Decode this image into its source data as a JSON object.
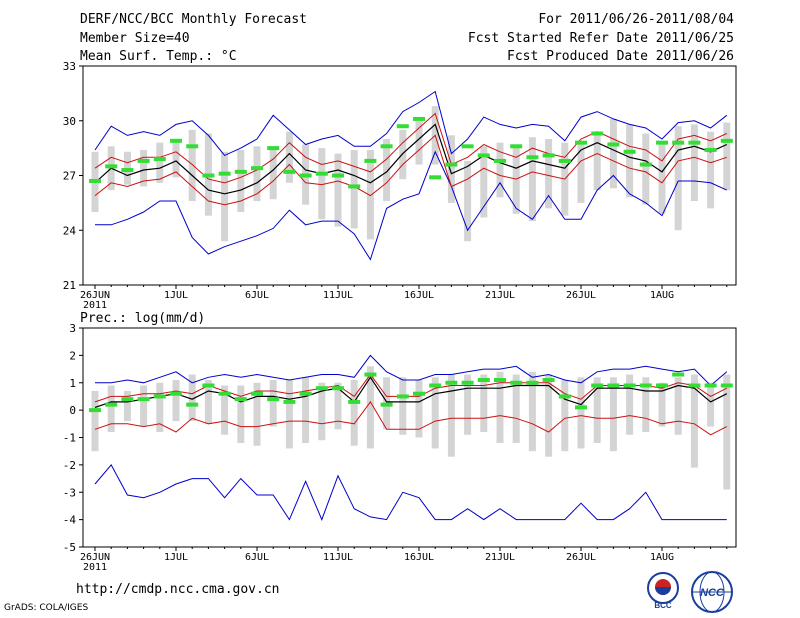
{
  "header": {
    "title": "DERF/NCC/BCC Monthly Forecast",
    "member": "Member Size=40",
    "variable": "Mean Surf. Temp.: °C",
    "period": "For 2011/06/26-2011/08/04",
    "started": "Fcst Started Refer Date 2011/06/25",
    "produced": "Fcst Produced Date 2011/06/26"
  },
  "footer": {
    "url": "http://cmdp.ncc.cma.gov.cn",
    "credit": "GrADS: COLA/IGES",
    "logo_left": "BCC",
    "logo_right": "NCC"
  },
  "colors": {
    "box": "#d4d4d4",
    "median": "#33dd33",
    "mean": "#000000",
    "spread": "#cc1111",
    "extreme": "#0000cc"
  },
  "chart_data": [
    {
      "type": "line",
      "title": "Mean Surf. Temp.: °C",
      "ylim": [
        21,
        33
      ],
      "yticks": [
        21,
        24,
        27,
        30,
        33
      ],
      "xticks": [
        "26JUN\n2011",
        "1JUL",
        "6JUL",
        "11JUL",
        "16JUL",
        "21JUL",
        "26JUL",
        "1AUG"
      ],
      "days": 40,
      "series": [
        {
          "name": "box_low",
          "values": [
            25.0,
            26.2,
            26.5,
            26.4,
            26.6,
            26.9,
            25.6,
            24.8,
            23.4,
            25.0,
            25.6,
            25.7,
            26.6,
            25.4,
            24.6,
            24.2,
            24.1,
            23.5,
            25.6,
            26.8,
            27.6,
            27.6,
            25.5,
            23.4,
            24.7,
            25.8,
            24.9,
            24.5,
            25.2,
            24.8,
            25.5,
            26.2,
            26.3,
            25.8,
            25.4,
            24.9,
            24.0,
            25.6,
            25.2,
            26.2
          ]
        },
        {
          "name": "box_high",
          "values": [
            28.3,
            28.6,
            28.3,
            28.4,
            28.8,
            29.0,
            29.5,
            29.3,
            28.3,
            28.4,
            28.6,
            28.6,
            29.4,
            28.7,
            28.5,
            28.2,
            28.4,
            28.4,
            29.0,
            29.5,
            30.0,
            30.8,
            29.2,
            27.8,
            28.6,
            28.8,
            28.7,
            29.1,
            29.0,
            28.8,
            28.9,
            29.4,
            30.1,
            29.8,
            29.3,
            28.8,
            29.7,
            29.8,
            29.4,
            29.9
          ]
        },
        {
          "name": "median",
          "values": [
            26.7,
            27.5,
            27.3,
            27.8,
            27.9,
            28.9,
            28.6,
            27.0,
            27.1,
            27.2,
            27.4,
            28.5,
            27.2,
            27.0,
            27.1,
            27.0,
            26.4,
            27.8,
            28.6,
            29.7,
            30.1,
            26.9,
            27.6,
            28.6,
            28.1,
            27.8,
            28.6,
            28.0,
            28.1,
            27.8,
            28.8,
            29.3,
            28.7,
            28.3,
            27.6,
            28.8,
            28.8,
            28.8,
            28.4,
            28.9
          ]
        },
        {
          "name": "mean",
          "values": [
            26.6,
            27.4,
            27.0,
            27.3,
            27.4,
            27.8,
            27.0,
            26.2,
            26.0,
            26.2,
            26.6,
            27.3,
            28.2,
            27.3,
            27.1,
            27.3,
            27.0,
            26.6,
            27.2,
            28.2,
            29.0,
            29.8,
            27.1,
            27.5,
            28.1,
            27.7,
            27.4,
            27.8,
            27.6,
            27.4,
            28.4,
            28.8,
            28.4,
            28.0,
            27.8,
            27.2,
            28.4,
            28.6,
            28.3,
            28.7
          ]
        },
        {
          "name": "upper",
          "values": [
            27.4,
            28.0,
            27.7,
            28.0,
            28.0,
            28.3,
            27.6,
            26.8,
            26.6,
            26.9,
            27.3,
            27.9,
            28.8,
            28.0,
            27.6,
            27.8,
            27.5,
            27.2,
            27.9,
            28.8,
            29.6,
            30.4,
            27.6,
            28.0,
            28.7,
            28.3,
            28.0,
            28.5,
            28.2,
            28.0,
            29.0,
            29.4,
            29.0,
            28.6,
            28.4,
            27.8,
            29.0,
            29.2,
            28.9,
            29.3
          ]
        },
        {
          "name": "lower",
          "values": [
            25.9,
            26.6,
            26.4,
            26.7,
            26.8,
            27.2,
            26.4,
            25.6,
            25.4,
            25.6,
            26.0,
            26.7,
            27.6,
            26.6,
            26.5,
            26.7,
            26.4,
            25.9,
            26.6,
            27.6,
            28.4,
            29.2,
            26.4,
            26.8,
            27.4,
            27.0,
            26.8,
            27.2,
            27.0,
            26.8,
            27.8,
            28.2,
            27.8,
            27.4,
            27.2,
            26.6,
            27.8,
            28.0,
            27.7,
            28.0
          ]
        },
        {
          "name": "max",
          "values": [
            28.4,
            29.7,
            29.2,
            29.4,
            29.2,
            29.8,
            30.0,
            29.2,
            28.1,
            28.5,
            29.0,
            30.3,
            29.5,
            28.7,
            29.0,
            29.2,
            28.6,
            28.6,
            29.3,
            30.5,
            31.0,
            31.6,
            28.2,
            29.0,
            30.2,
            29.8,
            29.6,
            29.8,
            29.7,
            28.9,
            30.2,
            30.5,
            30.1,
            29.8,
            29.6,
            29.0,
            29.9,
            30.0,
            29.6,
            30.3
          ]
        },
        {
          "name": "min",
          "values": [
            24.3,
            24.3,
            24.6,
            25.0,
            25.6,
            25.6,
            23.6,
            22.7,
            23.1,
            23.4,
            23.7,
            24.1,
            25.1,
            24.3,
            24.5,
            24.5,
            23.8,
            22.4,
            25.2,
            25.7,
            26.0,
            28.3,
            26.4,
            24.0,
            25.3,
            26.6,
            25.2,
            24.6,
            25.9,
            24.6,
            24.6,
            26.2,
            27.0,
            26.0,
            25.5,
            24.8,
            26.7,
            26.7,
            26.6,
            26.2
          ]
        }
      ]
    },
    {
      "type": "line",
      "title": "Prec.: log(mm/d)",
      "ylim": [
        -5,
        3
      ],
      "yticks": [
        -5,
        -4,
        -3,
        -2,
        -1,
        0,
        1,
        2,
        3
      ],
      "xticks": [
        "26JUN\n2011",
        "1JUL",
        "6JUL",
        "11JUL",
        "16JUL",
        "21JUL",
        "26JUL",
        "1AUG"
      ],
      "days": 40,
      "series": [
        {
          "name": "box_low",
          "values": [
            -1.5,
            -0.8,
            -0.4,
            -0.6,
            -0.8,
            -0.4,
            -0.4,
            -0.5,
            -0.9,
            -1.2,
            -1.3,
            -0.6,
            -1.4,
            -1.2,
            -1.1,
            -0.7,
            -1.3,
            -1.4,
            -0.7,
            -0.9,
            -1.0,
            -1.4,
            -1.7,
            -0.9,
            -0.8,
            -1.2,
            -1.2,
            -1.5,
            -1.7,
            -1.5,
            -1.4,
            -1.2,
            -1.5,
            -0.9,
            -0.8,
            -0.6,
            -0.9,
            -2.1,
            -0.6,
            -2.9
          ]
        },
        {
          "name": "box_high",
          "values": [
            0.7,
            0.9,
            0.7,
            0.9,
            1.0,
            1.1,
            1.3,
            1.1,
            0.9,
            0.9,
            1.0,
            1.1,
            1.1,
            1.2,
            1.0,
            1.0,
            1.1,
            1.6,
            1.2,
            1.2,
            1.1,
            1.2,
            1.3,
            1.3,
            1.3,
            1.4,
            1.3,
            1.4,
            1.3,
            1.1,
            1.2,
            1.2,
            1.2,
            1.3,
            1.2,
            1.0,
            1.2,
            1.3,
            1.0,
            1.3
          ]
        },
        {
          "name": "median",
          "values": [
            0.0,
            0.2,
            0.4,
            0.4,
            0.5,
            0.6,
            0.2,
            0.9,
            0.6,
            0.4,
            0.6,
            0.4,
            0.3,
            0.6,
            0.8,
            0.8,
            0.3,
            1.3,
            0.2,
            0.5,
            0.6,
            0.9,
            1.0,
            1.0,
            1.1,
            1.1,
            1.0,
            1.0,
            1.1,
            0.5,
            0.1,
            0.9,
            0.9,
            0.9,
            0.9,
            0.9,
            1.3,
            0.9,
            0.9,
            0.9
          ]
        },
        {
          "name": "mean",
          "values": [
            0.1,
            0.3,
            0.3,
            0.4,
            0.5,
            0.6,
            0.4,
            0.7,
            0.6,
            0.3,
            0.5,
            0.5,
            0.4,
            0.5,
            0.7,
            0.8,
            0.3,
            1.2,
            0.3,
            0.3,
            0.3,
            0.6,
            0.7,
            0.8,
            0.8,
            0.8,
            0.9,
            0.9,
            0.9,
            0.4,
            0.2,
            0.8,
            0.8,
            0.8,
            0.7,
            0.7,
            0.9,
            0.8,
            0.3,
            0.6
          ]
        },
        {
          "name": "upper",
          "values": [
            0.3,
            0.5,
            0.5,
            0.6,
            0.6,
            0.7,
            0.6,
            0.9,
            0.7,
            0.5,
            0.7,
            0.7,
            0.6,
            0.7,
            0.8,
            0.9,
            0.5,
            1.3,
            0.5,
            0.5,
            0.5,
            0.8,
            0.9,
            0.9,
            0.9,
            1.0,
            1.0,
            1.0,
            1.0,
            0.6,
            0.4,
            0.9,
            0.9,
            0.9,
            0.9,
            0.8,
            1.0,
            0.9,
            0.5,
            0.8
          ]
        },
        {
          "name": "lower",
          "values": [
            -0.7,
            -0.5,
            -0.5,
            -0.6,
            -0.5,
            -0.8,
            -0.3,
            -0.5,
            -0.4,
            -0.6,
            -0.6,
            -0.5,
            -0.4,
            -0.4,
            -0.5,
            -0.4,
            -0.5,
            0.3,
            -0.7,
            -0.7,
            -0.7,
            -0.4,
            -0.3,
            -0.3,
            -0.3,
            -0.2,
            -0.3,
            -0.5,
            -0.8,
            -0.3,
            -0.2,
            -0.3,
            -0.3,
            -0.2,
            -0.3,
            -0.5,
            -0.4,
            -0.5,
            -0.9,
            -0.6
          ]
        },
        {
          "name": "max",
          "values": [
            1.0,
            1.0,
            1.1,
            1.0,
            1.2,
            1.4,
            1.0,
            1.2,
            1.3,
            1.2,
            1.3,
            1.2,
            1.1,
            1.2,
            1.3,
            1.3,
            1.2,
            2.0,
            1.4,
            1.1,
            1.1,
            1.3,
            1.3,
            1.4,
            1.5,
            1.5,
            1.6,
            1.2,
            1.3,
            1.1,
            1.0,
            1.4,
            1.5,
            1.5,
            1.6,
            1.5,
            1.4,
            1.5,
            0.9,
            1.4
          ]
        },
        {
          "name": "min",
          "values": [
            -2.7,
            -2.0,
            -3.1,
            -3.2,
            -3.0,
            -2.7,
            -2.5,
            -2.5,
            -3.2,
            -2.5,
            -3.1,
            -3.1,
            -4.0,
            -2.6,
            -4.0,
            -2.4,
            -3.6,
            -3.9,
            -4.0,
            -3.0,
            -3.2,
            -4.0,
            -4.0,
            -3.6,
            -4.0,
            -3.6,
            -4.0,
            -4.0,
            -4.0,
            -4.0,
            -3.4,
            -4.0,
            -4.0,
            -3.6,
            -3.0,
            -4.0,
            -4.0,
            -4.0,
            -4.0,
            -4.0
          ]
        }
      ]
    }
  ]
}
